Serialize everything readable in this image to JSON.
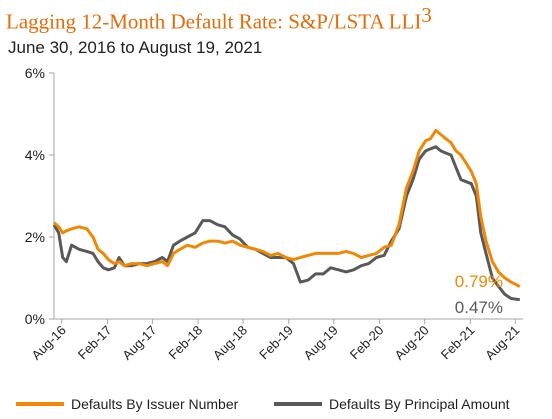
{
  "header": {
    "title": "Lagging 12-Month Default Rate: S&P/LSTA LLI",
    "title_sup": "3",
    "subtitle": "June 30, 2016 to August 19, 2021"
  },
  "colors": {
    "title": "#e36c0a",
    "issuer": "#f28705",
    "principal": "#595959",
    "axis": "#a6a6a6",
    "text": "#222222"
  },
  "chart_data": {
    "type": "line",
    "title": "Lagging 12-Month Default Rate: S&P/LSTA LLI",
    "xlabel": "",
    "ylabel": "",
    "ylim": [
      0,
      6
    ],
    "yticks": [
      "0%",
      "2%",
      "4%",
      "6%"
    ],
    "xlim": [
      "2016-07-01",
      "2021-09-01"
    ],
    "xticks": [
      {
        "date": "2016-08-01",
        "label": "Aug-16"
      },
      {
        "date": "2017-02-01",
        "label": "Feb-17"
      },
      {
        "date": "2017-08-01",
        "label": "Aug-17"
      },
      {
        "date": "2018-02-01",
        "label": "Feb-18"
      },
      {
        "date": "2018-08-01",
        "label": "Aug-18"
      },
      {
        "date": "2019-02-01",
        "label": "Feb-19"
      },
      {
        "date": "2019-08-01",
        "label": "Aug-19"
      },
      {
        "date": "2020-02-01",
        "label": "Feb-20"
      },
      {
        "date": "2020-08-01",
        "label": "Aug-20"
      },
      {
        "date": "2021-02-01",
        "label": "Feb-21"
      },
      {
        "date": "2021-08-01",
        "label": "Aug-21"
      }
    ],
    "grid": false,
    "legend_position": "bottom",
    "series": [
      {
        "name": "Defaults By Issuer Number",
        "end_label": "0.79%",
        "points": [
          [
            "2016-07-01",
            2.35
          ],
          [
            "2016-07-20",
            2.25
          ],
          [
            "2016-08-05",
            2.1
          ],
          [
            "2016-08-20",
            2.15
          ],
          [
            "2016-09-10",
            2.2
          ],
          [
            "2016-10-10",
            2.25
          ],
          [
            "2016-11-10",
            2.2
          ],
          [
            "2016-12-05",
            2.0
          ],
          [
            "2016-12-25",
            1.7
          ],
          [
            "2017-01-15",
            1.6
          ],
          [
            "2017-02-05",
            1.45
          ],
          [
            "2017-03-01",
            1.35
          ],
          [
            "2017-03-20",
            1.4
          ],
          [
            "2017-04-10",
            1.3
          ],
          [
            "2017-05-10",
            1.35
          ],
          [
            "2017-06-10",
            1.35
          ],
          [
            "2017-07-10",
            1.3
          ],
          [
            "2017-08-10",
            1.35
          ],
          [
            "2017-09-10",
            1.4
          ],
          [
            "2017-10-01",
            1.3
          ],
          [
            "2017-10-25",
            1.6
          ],
          [
            "2017-11-20",
            1.7
          ],
          [
            "2017-12-20",
            1.8
          ],
          [
            "2018-01-20",
            1.75
          ],
          [
            "2018-02-20",
            1.85
          ],
          [
            "2018-03-20",
            1.9
          ],
          [
            "2018-04-20",
            1.9
          ],
          [
            "2018-05-20",
            1.85
          ],
          [
            "2018-06-20",
            1.9
          ],
          [
            "2018-07-20",
            1.8
          ],
          [
            "2018-08-20",
            1.75
          ],
          [
            "2018-09-20",
            1.7
          ],
          [
            "2018-10-20",
            1.65
          ],
          [
            "2018-11-20",
            1.55
          ],
          [
            "2018-12-20",
            1.6
          ],
          [
            "2019-01-20",
            1.5
          ],
          [
            "2019-02-20",
            1.45
          ],
          [
            "2019-03-20",
            1.5
          ],
          [
            "2019-04-20",
            1.55
          ],
          [
            "2019-05-20",
            1.6
          ],
          [
            "2019-06-20",
            1.6
          ],
          [
            "2019-07-20",
            1.6
          ],
          [
            "2019-08-20",
            1.6
          ],
          [
            "2019-09-20",
            1.65
          ],
          [
            "2019-10-20",
            1.6
          ],
          [
            "2019-11-20",
            1.5
          ],
          [
            "2019-12-20",
            1.55
          ],
          [
            "2020-01-20",
            1.6
          ],
          [
            "2020-02-20",
            1.75
          ],
          [
            "2020-03-20",
            1.8
          ],
          [
            "2020-04-20",
            2.3
          ],
          [
            "2020-05-20",
            3.2
          ],
          [
            "2020-06-15",
            3.6
          ],
          [
            "2020-07-10",
            4.1
          ],
          [
            "2020-08-05",
            4.35
          ],
          [
            "2020-08-25",
            4.4
          ],
          [
            "2020-09-15",
            4.6
          ],
          [
            "2020-10-05",
            4.5
          ],
          [
            "2020-10-25",
            4.4
          ],
          [
            "2020-11-15",
            4.3
          ],
          [
            "2020-12-05",
            4.1
          ],
          [
            "2020-12-25",
            4.0
          ],
          [
            "2021-01-15",
            3.8
          ],
          [
            "2021-02-05",
            3.6
          ],
          [
            "2021-02-25",
            3.3
          ],
          [
            "2021-03-15",
            2.5
          ],
          [
            "2021-04-05",
            1.9
          ],
          [
            "2021-05-01",
            1.4
          ],
          [
            "2021-05-25",
            1.15
          ],
          [
            "2021-06-20",
            1.0
          ],
          [
            "2021-07-15",
            0.9
          ],
          [
            "2021-08-19",
            0.79
          ]
        ]
      },
      {
        "name": "Defaults By Principal Amount",
        "end_label": "0.47%",
        "points": [
          [
            "2016-07-01",
            2.3
          ],
          [
            "2016-07-20",
            2.1
          ],
          [
            "2016-08-05",
            1.5
          ],
          [
            "2016-08-20",
            1.4
          ],
          [
            "2016-09-10",
            1.8
          ],
          [
            "2016-10-10",
            1.7
          ],
          [
            "2016-11-10",
            1.65
          ],
          [
            "2016-12-05",
            1.6
          ],
          [
            "2016-12-25",
            1.4
          ],
          [
            "2017-01-15",
            1.25
          ],
          [
            "2017-02-05",
            1.2
          ],
          [
            "2017-03-01",
            1.25
          ],
          [
            "2017-03-20",
            1.5
          ],
          [
            "2017-04-10",
            1.3
          ],
          [
            "2017-05-10",
            1.3
          ],
          [
            "2017-06-10",
            1.35
          ],
          [
            "2017-07-10",
            1.35
          ],
          [
            "2017-08-10",
            1.4
          ],
          [
            "2017-09-10",
            1.5
          ],
          [
            "2017-10-01",
            1.4
          ],
          [
            "2017-10-25",
            1.8
          ],
          [
            "2017-11-20",
            1.9
          ],
          [
            "2017-12-20",
            2.0
          ],
          [
            "2018-01-20",
            2.1
          ],
          [
            "2018-02-20",
            2.4
          ],
          [
            "2018-03-20",
            2.4
          ],
          [
            "2018-04-20",
            2.3
          ],
          [
            "2018-05-20",
            2.25
          ],
          [
            "2018-06-20",
            2.05
          ],
          [
            "2018-07-20",
            1.95
          ],
          [
            "2018-08-20",
            1.75
          ],
          [
            "2018-09-20",
            1.7
          ],
          [
            "2018-10-20",
            1.6
          ],
          [
            "2018-11-20",
            1.5
          ],
          [
            "2018-12-20",
            1.5
          ],
          [
            "2019-01-20",
            1.5
          ],
          [
            "2019-02-20",
            1.35
          ],
          [
            "2019-03-20",
            0.9
          ],
          [
            "2019-04-20",
            0.95
          ],
          [
            "2019-05-20",
            1.1
          ],
          [
            "2019-06-20",
            1.1
          ],
          [
            "2019-07-20",
            1.25
          ],
          [
            "2019-08-20",
            1.2
          ],
          [
            "2019-09-20",
            1.15
          ],
          [
            "2019-10-20",
            1.2
          ],
          [
            "2019-11-20",
            1.3
          ],
          [
            "2019-12-20",
            1.35
          ],
          [
            "2020-01-20",
            1.5
          ],
          [
            "2020-02-20",
            1.55
          ],
          [
            "2020-03-20",
            1.9
          ],
          [
            "2020-04-20",
            2.2
          ],
          [
            "2020-05-20",
            3.0
          ],
          [
            "2020-06-15",
            3.4
          ],
          [
            "2020-07-10",
            3.9
          ],
          [
            "2020-08-05",
            4.1
          ],
          [
            "2020-08-25",
            4.15
          ],
          [
            "2020-09-15",
            4.2
          ],
          [
            "2020-10-05",
            4.1
          ],
          [
            "2020-10-25",
            4.05
          ],
          [
            "2020-11-15",
            4.0
          ],
          [
            "2020-12-05",
            3.7
          ],
          [
            "2020-12-25",
            3.4
          ],
          [
            "2021-01-15",
            3.35
          ],
          [
            "2021-02-05",
            3.3
          ],
          [
            "2021-02-25",
            3.0
          ],
          [
            "2021-03-15",
            2.1
          ],
          [
            "2021-04-05",
            1.6
          ],
          [
            "2021-05-01",
            1.0
          ],
          [
            "2021-05-25",
            0.8
          ],
          [
            "2021-06-20",
            0.6
          ],
          [
            "2021-07-15",
            0.5
          ],
          [
            "2021-08-19",
            0.47
          ]
        ]
      }
    ]
  }
}
